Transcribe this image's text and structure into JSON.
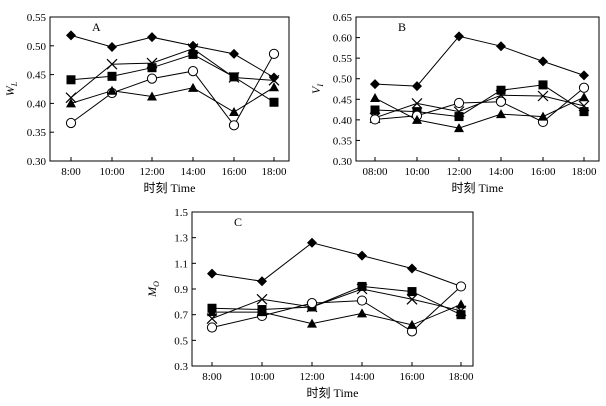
{
  "chart_data": [
    {
      "type": "line",
      "panel": "A",
      "xlabel": "时刻 Time",
      "ylabel": "W",
      "ylabel_sub": "L",
      "categories": [
        "8:00",
        "10:00",
        "12:00",
        "14:00",
        "16:00",
        "18:00"
      ],
      "ylim": [
        0.3,
        0.55
      ],
      "yticks": [
        "0.30",
        "0.35",
        "0.40",
        "0.45",
        "0.50",
        "0.55"
      ],
      "series": [
        {
          "name": "diamond",
          "marker": "diamond",
          "values": [
            0.518,
            0.498,
            0.515,
            0.5,
            0.486,
            0.445
          ]
        },
        {
          "name": "cross",
          "marker": "cross",
          "values": [
            0.41,
            0.468,
            0.47,
            0.495,
            0.445,
            0.44
          ]
        },
        {
          "name": "square",
          "marker": "square",
          "values": [
            0.441,
            0.447,
            0.462,
            0.485,
            0.446,
            0.402
          ]
        },
        {
          "name": "circle",
          "marker": "circle",
          "values": [
            0.366,
            0.418,
            0.443,
            0.456,
            0.362,
            0.486
          ]
        },
        {
          "name": "triangle",
          "marker": "triangle",
          "values": [
            0.4,
            0.422,
            0.412,
            0.427,
            0.385,
            0.428
          ]
        }
      ]
    },
    {
      "type": "line",
      "panel": "B",
      "xlabel": "时刻 Time",
      "ylabel": "V",
      "ylabel_sub": "I",
      "categories": [
        "08:00",
        "10:00",
        "12:00",
        "14:00",
        "16:00",
        "18:00"
      ],
      "ylim": [
        0.3,
        0.65
      ],
      "yticks": [
        "0.30",
        "0.35",
        "0.40",
        "0.45",
        "0.50",
        "0.55",
        "0.60",
        "0.65"
      ],
      "series": [
        {
          "name": "diamond",
          "marker": "diamond",
          "values": [
            0.487,
            0.482,
            0.603,
            0.579,
            0.542,
            0.508
          ]
        },
        {
          "name": "cross",
          "marker": "cross",
          "values": [
            0.405,
            0.44,
            0.42,
            0.46,
            0.458,
            0.434
          ]
        },
        {
          "name": "square",
          "marker": "square",
          "values": [
            0.424,
            0.42,
            0.408,
            0.472,
            0.485,
            0.42
          ]
        },
        {
          "name": "circle",
          "marker": "circle",
          "values": [
            0.401,
            0.41,
            0.441,
            0.444,
            0.395,
            0.478
          ]
        },
        {
          "name": "triangle",
          "marker": "triangle",
          "values": [
            0.453,
            0.4,
            0.38,
            0.414,
            0.408,
            0.455
          ]
        }
      ]
    },
    {
      "type": "line",
      "panel": "C",
      "xlabel": "时刻 Time",
      "ylabel": "M",
      "ylabel_sub": "O",
      "categories": [
        "8:00",
        "10:00",
        "12:00",
        "14:00",
        "16:00",
        "18:00"
      ],
      "ylim": [
        0.3,
        1.5
      ],
      "yticks": [
        "0.3",
        "0.5",
        "0.7",
        "0.9",
        "1.1",
        "1.3",
        "1.5"
      ],
      "series": [
        {
          "name": "diamond",
          "marker": "diamond",
          "values": [
            1.02,
            0.96,
            1.26,
            1.16,
            1.06,
            0.92
          ]
        },
        {
          "name": "cross",
          "marker": "cross",
          "values": [
            0.67,
            0.82,
            0.76,
            0.9,
            0.82,
            0.73
          ]
        },
        {
          "name": "square",
          "marker": "square",
          "values": [
            0.75,
            0.74,
            0.76,
            0.92,
            0.88,
            0.7
          ]
        },
        {
          "name": "circle",
          "marker": "circle",
          "values": [
            0.6,
            0.69,
            0.79,
            0.81,
            0.57,
            0.92
          ]
        },
        {
          "name": "triangle",
          "marker": "triangle",
          "values": [
            0.72,
            0.72,
            0.63,
            0.71,
            0.62,
            0.78
          ]
        }
      ]
    }
  ]
}
